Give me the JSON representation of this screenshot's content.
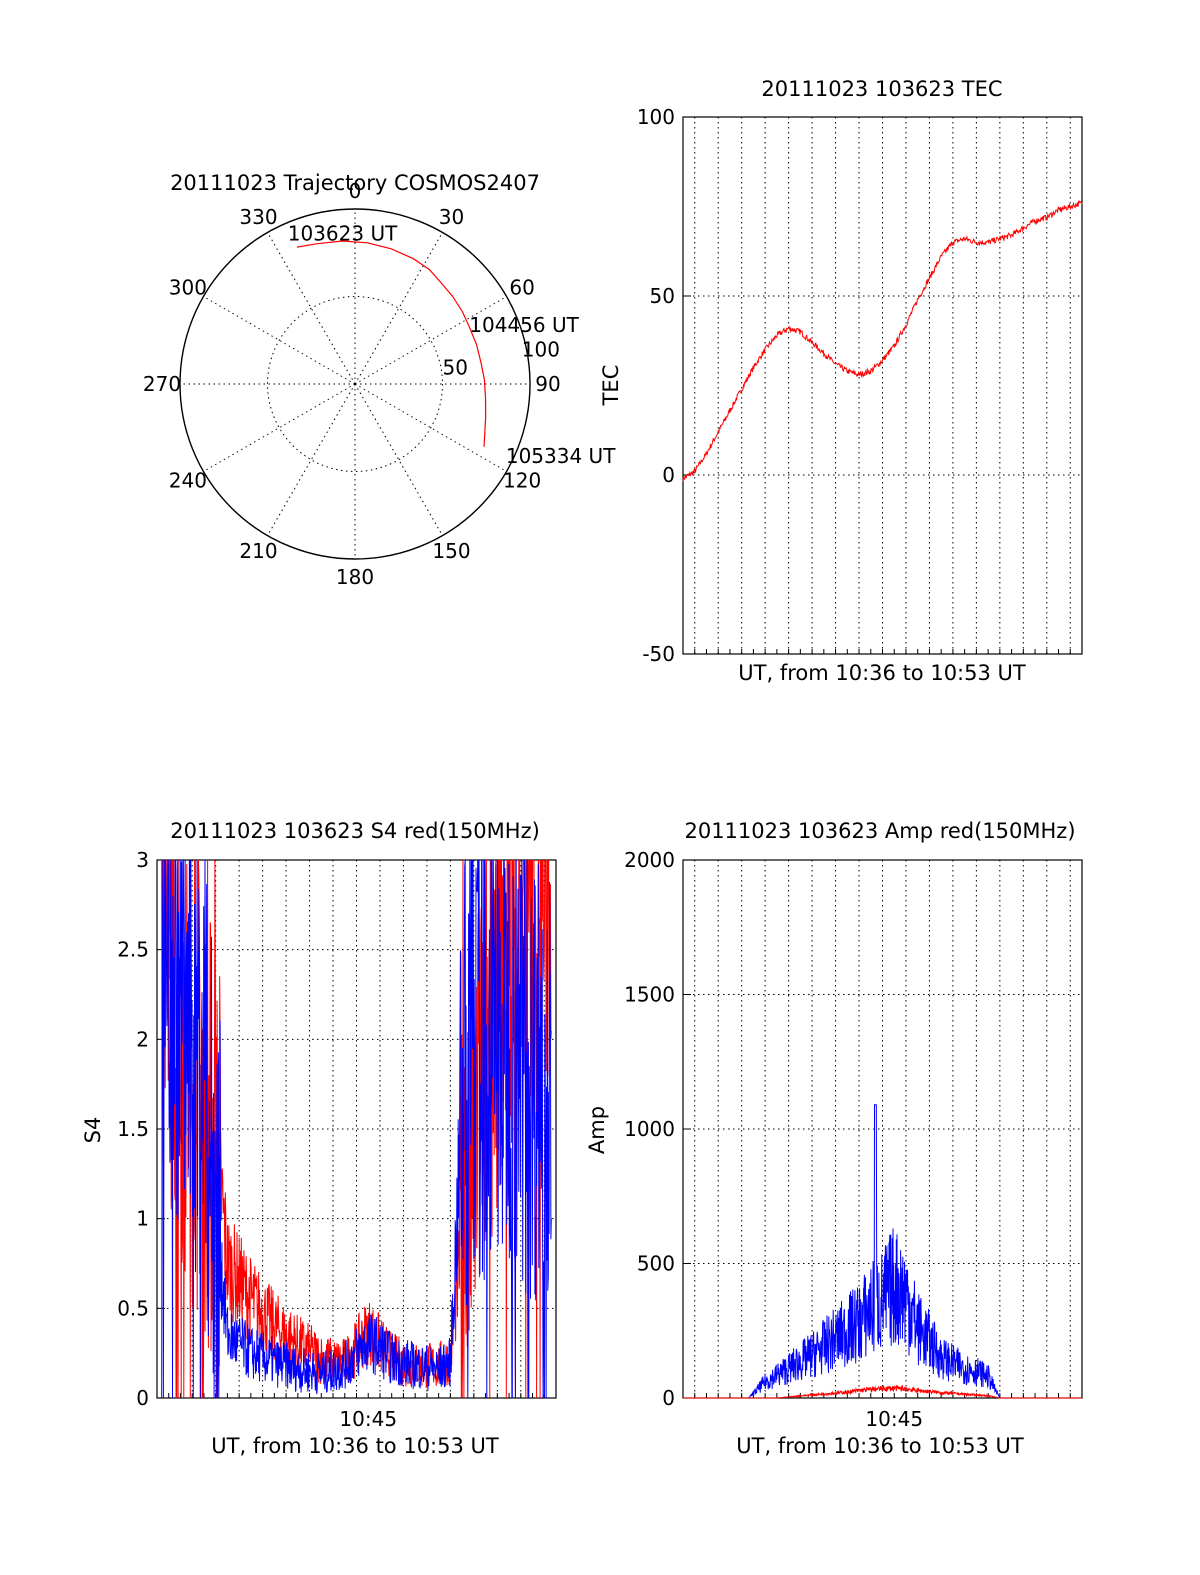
{
  "colors": {
    "red": "#ff0000",
    "blue": "#0000ff",
    "axis": "#000000"
  },
  "chart_data": [
    {
      "type": "polar",
      "title": "20111023 Trajectory COSMOS2407",
      "angle_labels": [
        "0",
        "30",
        "60",
        "90",
        "120",
        "150",
        "180",
        "210",
        "240",
        "270",
        "300",
        "330"
      ],
      "radius_labels": [
        "50",
        "100"
      ],
      "radius_label_values": [
        50,
        100
      ],
      "rlim": [
        0,
        100
      ],
      "radial_spokes_deg": [
        0,
        30,
        60,
        90,
        120,
        150,
        180,
        210,
        240,
        270,
        300,
        330
      ],
      "track": {
        "color": "red",
        "azimuth_deg": [
          337,
          345,
          355,
          5,
          15,
          25,
          33,
          40,
          48,
          56,
          64,
          72,
          80,
          88,
          96,
          104,
          110,
          116
        ],
        "radius": [
          85,
          83,
          82,
          81,
          80,
          79,
          78,
          76,
          75,
          74,
          73,
          73,
          73,
          74,
          75,
          77,
          79,
          82
        ]
      },
      "annotations": [
        {
          "text": "103623 UT",
          "az": 335,
          "r": 95
        },
        {
          "text": "104456 UT",
          "az": 62,
          "r": 72
        },
        {
          "text": "105334 UT",
          "az": 116,
          "r": 94
        }
      ]
    },
    {
      "type": "line",
      "title": "20111023 103623 TEC",
      "xlabel": "UT, from 10:36 to 10:53 UT",
      "ylabel": "TEC",
      "xlim": [
        0,
        17
      ],
      "ylim": [
        -50,
        100
      ],
      "yticks": [
        "100",
        "50",
        "0",
        "-50"
      ],
      "ytick_values": [
        100,
        50,
        0,
        -50
      ],
      "x_grid_minutes": [
        0.5,
        1.5,
        2.5,
        3.5,
        4.5,
        5.5,
        6.5,
        7.5,
        8.5,
        9.5,
        10.5,
        11.5,
        12.5,
        13.5,
        14.5,
        15.5,
        16.5
      ],
      "series": [
        {
          "color": "red",
          "x": [
            0,
            0.5,
            1,
            1.5,
            2,
            2.5,
            3,
            3.5,
            4,
            4.5,
            5,
            5.5,
            6,
            6.5,
            7,
            7.5,
            8,
            8.5,
            9,
            9.5,
            10,
            10.5,
            11,
            11.5,
            12,
            12.5,
            13,
            13.5,
            14,
            14.5,
            15,
            15.5,
            16,
            16.5,
            17
          ],
          "y": [
            -1,
            1,
            6,
            12,
            18,
            24,
            30,
            35,
            39,
            41,
            40,
            37,
            34,
            31,
            29,
            28,
            29,
            32,
            36,
            42,
            49,
            55,
            61,
            65,
            66,
            65,
            65,
            66,
            67,
            69,
            71,
            72,
            74,
            75,
            76
          ]
        }
      ]
    },
    {
      "type": "line",
      "title": "20111023 103623 S4 red(150MHz)",
      "xlabel": "UT, from 10:36 to 10:53 UT",
      "ylabel": "S4",
      "xlim": [
        0,
        17
      ],
      "ylim": [
        0,
        3
      ],
      "yticks": [
        "3",
        "2.5",
        "2",
        "1.5",
        "1",
        "0.5",
        "0"
      ],
      "ytick_values": [
        3,
        2.5,
        2,
        1.5,
        1,
        0.5,
        0
      ],
      "xtick_labels": [
        "10:45"
      ],
      "xtick_values": [
        9
      ],
      "series": [
        {
          "color": "red",
          "x": [
            0.3,
            1.0,
            2.0,
            2.7,
            3.0,
            4.0,
            5.0,
            6.0,
            7.0,
            7.5,
            8.0,
            8.5,
            9.0,
            9.5,
            10.0,
            11.0,
            12.0,
            12.5,
            13.0,
            13.5,
            14.0,
            15.0,
            16.0,
            16.7
          ],
          "y": [
            2.6,
            2.0,
            1.6,
            1.2,
            0.75,
            0.55,
            0.4,
            0.3,
            0.22,
            0.2,
            0.2,
            0.28,
            0.38,
            0.3,
            0.22,
            0.18,
            0.18,
            0.22,
            0.9,
            1.4,
            2.0,
            2.7,
            2.8,
            2.9
          ]
        },
        {
          "color": "blue",
          "x": [
            0.3,
            1.0,
            2.0,
            2.7,
            3.0,
            4.0,
            5.0,
            6.0,
            7.0,
            7.5,
            8.0,
            8.5,
            9.0,
            9.5,
            10.0,
            11.0,
            12.0,
            12.5,
            13.0,
            13.5,
            14.0,
            15.0,
            16.0,
            16.7
          ],
          "y": [
            2.5,
            2.2,
            1.8,
            0.8,
            0.35,
            0.25,
            0.2,
            0.16,
            0.14,
            0.15,
            0.18,
            0.25,
            0.32,
            0.28,
            0.22,
            0.18,
            0.16,
            0.2,
            1.6,
            2.0,
            1.9,
            2.0,
            1.8,
            1.9
          ]
        }
      ]
    },
    {
      "type": "line",
      "title": "20111023 103623 Amp red(150MHz)",
      "xlabel": "UT, from 10:36 to 10:53 UT",
      "ylabel": "Amp",
      "xlim": [
        0,
        17
      ],
      "ylim": [
        0,
        2000
      ],
      "yticks": [
        "2000",
        "1500",
        "1000",
        "500",
        "0"
      ],
      "ytick_values": [
        2000,
        1500,
        1000,
        500,
        0
      ],
      "xtick_labels": [
        "10:45"
      ],
      "xtick_values": [
        9
      ],
      "series": [
        {
          "color": "blue",
          "x": [
            0,
            1,
            2,
            2.8,
            3.5,
            4.5,
            5.5,
            6.5,
            7.5,
            8.0,
            8.5,
            9.0,
            9.5,
            10.0,
            10.5,
            11.0,
            11.5,
            12.0,
            12.5,
            13.0,
            13.5,
            14,
            15,
            16,
            17
          ],
          "y": [
            0,
            0,
            0,
            0,
            60,
            110,
            160,
            220,
            280,
            330,
            360,
            420,
            380,
            260,
            210,
            150,
            130,
            110,
            100,
            80,
            0,
            0,
            0,
            0,
            0
          ]
        },
        {
          "color": "red",
          "x": [
            0,
            1,
            2,
            3,
            4,
            5,
            6,
            7,
            7.5,
            8,
            8.5,
            9,
            9.5,
            10,
            11,
            12,
            13,
            13.5,
            14,
            15,
            16,
            17
          ],
          "y": [
            0,
            0,
            0,
            0,
            0,
            8,
            15,
            22,
            28,
            32,
            35,
            36,
            34,
            28,
            20,
            14,
            8,
            0,
            0,
            0,
            0,
            0
          ]
        }
      ]
    }
  ]
}
